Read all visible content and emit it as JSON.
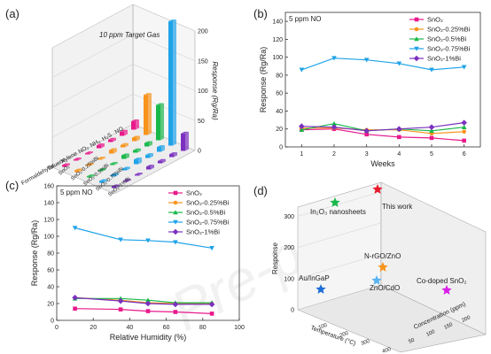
{
  "panels": [
    "(a)",
    "(b)",
    "(c)",
    "(d)"
  ],
  "chart_data": [
    {
      "id": "a",
      "type": "bar3d",
      "annotation": "10 ppm Target Gas",
      "zlabel": "Response (Rg/Ra)",
      "zticks": [
        0,
        50,
        100,
        150,
        200
      ],
      "zlim": [
        0,
        200
      ],
      "gases": [
        "NO",
        "H2S",
        "NH3",
        "NO2",
        "Xylene",
        "Toluene",
        "Formaldehyde"
      ],
      "gases_display": [
        "NO",
        "H₂S",
        "NH₃",
        "NO₂",
        "Xylene",
        "Toluene",
        "Formaldehyde"
      ],
      "series": [
        {
          "name": "SnO2",
          "display": "SnO₂",
          "color": "#e8198b",
          "values": [
            14,
            7,
            4,
            5,
            2,
            2,
            3
          ]
        },
        {
          "name": "SnO2-0.25%Bi",
          "display": "SnO₂-0.25%Bi",
          "color": "#f7941d",
          "values": [
            67,
            6,
            4,
            6,
            2,
            2,
            3
          ]
        },
        {
          "name": "SnO2-0.5%Bi",
          "display": "SnO₂-0.5%Bi",
          "color": "#19b84a",
          "values": [
            59,
            6,
            4,
            6,
            2,
            2,
            2
          ]
        },
        {
          "name": "SnO2-0.75%Bi",
          "display": "SnO₂-0.75%Bi",
          "color": "#1fa3e8",
          "values": [
            208,
            8,
            5,
            8,
            3,
            3,
            3
          ]
        },
        {
          "name": "SnO2-1%Bi",
          "display": "SnO₂-1%Bi",
          "color": "#7b2fbf",
          "values": [
            29,
            5,
            4,
            5,
            2,
            2,
            3
          ]
        }
      ]
    },
    {
      "id": "b",
      "type": "line",
      "annotation": "5 ppm NO",
      "xlabel": "Weeks",
      "ylabel": "Response (Rg/Ra)",
      "x": [
        1,
        2,
        3,
        4,
        5,
        6
      ],
      "xlim": [
        0.5,
        6.5
      ],
      "ylim": [
        0,
        150
      ],
      "yticks": [
        0,
        20,
        40,
        60,
        80,
        100,
        120,
        140
      ],
      "series": [
        {
          "name": "SnO2",
          "display": "SnO₂",
          "color": "#e8198b",
          "marker": "square",
          "values": [
            19,
            20,
            14,
            11,
            10,
            7
          ]
        },
        {
          "name": "SnO2-0.25%Bi",
          "display": "SnO₂-0.25%Bi",
          "color": "#f7941d",
          "marker": "circle",
          "values": [
            21,
            21,
            19,
            19,
            15,
            17
          ]
        },
        {
          "name": "SnO2-0.5%Bi",
          "display": "SnO₂-0.5%Bi",
          "color": "#19b84a",
          "marker": "triangle-up",
          "values": [
            19,
            26,
            18,
            20,
            18,
            22
          ]
        },
        {
          "name": "SnO2-0.75%Bi",
          "display": "SnO₂-0.75%Bi",
          "color": "#1fa3e8",
          "marker": "triangle-down",
          "values": [
            86,
            99,
            97,
            93,
            86,
            89
          ]
        },
        {
          "name": "SnO2-1%Bi",
          "display": "SnO₂-1%Bi",
          "color": "#7b2fbf",
          "marker": "diamond",
          "values": [
            23,
            22,
            18,
            20,
            22,
            27
          ]
        }
      ],
      "legend": "top-right"
    },
    {
      "id": "c",
      "type": "line",
      "annotation": "5 ppm NO",
      "xlabel": "Relative Humidity (%)",
      "ylabel": "Response (Rg/Ra)",
      "x": [
        10,
        35,
        50,
        65,
        85
      ],
      "xlim": [
        0,
        100
      ],
      "xticks": [
        0,
        20,
        40,
        60,
        80,
        100
      ],
      "ylim": [
        0,
        160
      ],
      "yticks": [
        0,
        20,
        40,
        60,
        80,
        100,
        120,
        140,
        160
      ],
      "series": [
        {
          "name": "SnO2",
          "display": "SnO₂",
          "color": "#e8198b",
          "marker": "square",
          "values": [
            14,
            13,
            11,
            10,
            8
          ]
        },
        {
          "name": "SnO2-0.25%Bi",
          "display": "SnO₂-0.25%Bi",
          "color": "#f7941d",
          "marker": "circle",
          "values": [
            27,
            24,
            21,
            20,
            20
          ]
        },
        {
          "name": "SnO2-0.5%Bi",
          "display": "SnO₂-0.5%Bi",
          "color": "#19b84a",
          "marker": "triangle-up",
          "values": [
            26,
            26,
            24,
            21,
            21
          ]
        },
        {
          "name": "SnO2-0.75%Bi",
          "display": "SnO₂-0.75%Bi",
          "color": "#1fa3e8",
          "marker": "triangle-down",
          "values": [
            110,
            96,
            95,
            93,
            86
          ]
        },
        {
          "name": "SnO2-1%Bi",
          "display": "SnO₂-1%Bi",
          "color": "#7b2fbf",
          "marker": "diamond",
          "values": [
            27,
            23,
            20,
            19,
            19
          ]
        }
      ],
      "legend": "top-right"
    },
    {
      "id": "d",
      "type": "scatter3d",
      "zlabel": "Response",
      "zticks": [
        0,
        100,
        200,
        300
      ],
      "xlabel": "Concentration (ppm)",
      "ylabel": "Temperature (°C)",
      "xticks": [
        50,
        100,
        150,
        200
      ],
      "yticks": [
        100,
        200,
        300,
        400
      ],
      "points": [
        {
          "label": "This work",
          "color": "#e8192c",
          "marker": "star",
          "response": 226
        },
        {
          "label": "In2O3 nanosheets",
          "display": "In₂O₃ nanosheets",
          "color": "#19b84a",
          "marker": "star",
          "response": 210
        },
        {
          "label": "N-rGO/ZnO",
          "color": "#f7941d",
          "marker": "star",
          "response": 60
        },
        {
          "label": "Au/InGaP",
          "color": "#1f6fd6",
          "marker": "star",
          "response": 12
        },
        {
          "label": "ZnO/CdO",
          "color": "#5ab4f0",
          "marker": "star",
          "response": 30
        },
        {
          "label": "Co-doped SnO2",
          "display": "Co-doped SnO₂",
          "color": "#d91ee8",
          "marker": "star",
          "response": 15
        }
      ]
    }
  ],
  "watermark": "Pre-proof"
}
